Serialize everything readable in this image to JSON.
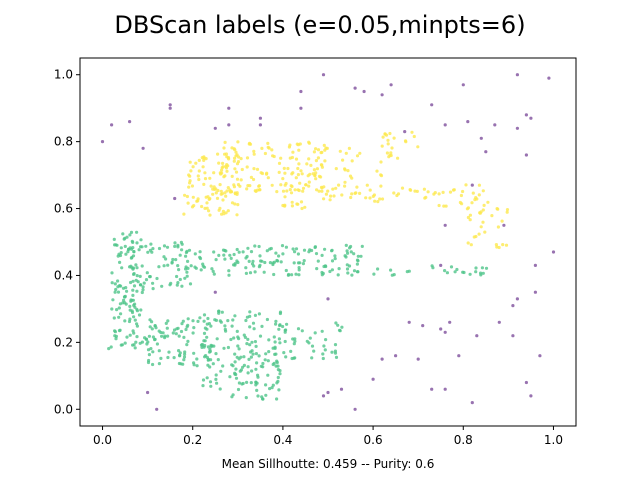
{
  "chart_data": {
    "type": "scatter",
    "title": "DBScan labels (e=0.05,minpts=6)",
    "xlabel": "Mean Sillhoutte: 0.459 -- Purity: 0.6",
    "ylabel": "",
    "xlim": [
      -0.05,
      1.05
    ],
    "ylim": [
      -0.05,
      1.05
    ],
    "xticks": [
      "0.0",
      "0.2",
      "0.4",
      "0.6",
      "0.8",
      "1.0"
    ],
    "yticks": [
      "0.0",
      "0.2",
      "0.4",
      "0.6",
      "0.8",
      "1.0"
    ],
    "grid": false,
    "legend": "none",
    "series": [
      {
        "color": "#7e4f9c",
        "points": [
          [
            0.0,
            0.8
          ],
          [
            0.02,
            0.85
          ],
          [
            0.06,
            0.86
          ],
          [
            0.09,
            0.78
          ],
          [
            0.15,
            0.91
          ],
          [
            0.15,
            0.9
          ],
          [
            0.16,
            0.63
          ],
          [
            0.25,
            0.84
          ],
          [
            0.28,
            0.85
          ],
          [
            0.28,
            0.9
          ],
          [
            0.35,
            0.87
          ],
          [
            0.35,
            0.85
          ],
          [
            0.44,
            0.9
          ],
          [
            0.44,
            0.95
          ],
          [
            0.49,
            1.0
          ],
          [
            0.56,
            0.96
          ],
          [
            0.58,
            0.95
          ],
          [
            0.62,
            0.94
          ],
          [
            0.64,
            0.97
          ],
          [
            0.67,
            0.83
          ],
          [
            0.73,
            0.91
          ],
          [
            0.76,
            0.85
          ],
          [
            0.8,
            0.97
          ],
          [
            0.81,
            0.86
          ],
          [
            0.84,
            0.81
          ],
          [
            0.87,
            0.85
          ],
          [
            0.92,
            1.0
          ],
          [
            0.92,
            0.84
          ],
          [
            0.94,
            0.88
          ],
          [
            0.95,
            0.87
          ],
          [
            0.94,
            0.76
          ],
          [
            0.99,
            0.99
          ],
          [
            0.89,
            0.55
          ],
          [
            0.76,
            0.55
          ],
          [
            0.75,
            0.43
          ],
          [
            0.96,
            0.43
          ],
          [
            1.0,
            0.47
          ],
          [
            0.85,
            0.77
          ],
          [
            0.82,
            0.67
          ],
          [
            0.25,
            0.35
          ],
          [
            0.5,
            0.33
          ],
          [
            0.68,
            0.26
          ],
          [
            0.71,
            0.25
          ],
          [
            0.75,
            0.24
          ],
          [
            0.77,
            0.26
          ],
          [
            0.76,
            0.23
          ],
          [
            0.83,
            0.22
          ],
          [
            0.88,
            0.26
          ],
          [
            0.91,
            0.31
          ],
          [
            0.92,
            0.33
          ],
          [
            0.91,
            0.22
          ],
          [
            0.96,
            0.35
          ],
          [
            0.97,
            0.16
          ],
          [
            0.65,
            0.16
          ],
          [
            0.62,
            0.15
          ],
          [
            0.7,
            0.15
          ],
          [
            0.79,
            0.16
          ],
          [
            0.6,
            0.09
          ],
          [
            0.73,
            0.06
          ],
          [
            0.76,
            0.06
          ],
          [
            0.82,
            0.02
          ],
          [
            0.5,
            0.05
          ],
          [
            0.49,
            0.04
          ],
          [
            0.53,
            0.06
          ],
          [
            0.56,
            0.0
          ],
          [
            0.94,
            0.08
          ],
          [
            0.95,
            0.04
          ],
          [
            0.1,
            0.05
          ],
          [
            0.12,
            0.0
          ]
        ]
      },
      {
        "color": "#4fc48a",
        "regions": [
          {
            "x": [
              0.02,
              0.09
            ],
            "y": [
              0.19,
              0.53
            ],
            "n": 110
          },
          {
            "x": [
              0.06,
              0.22
            ],
            "y": [
              0.36,
              0.5
            ],
            "n": 80
          },
          {
            "x": [
              0.22,
              0.58
            ],
            "y": [
              0.4,
              0.49
            ],
            "n": 130
          },
          {
            "x": [
              0.58,
              0.86
            ],
            "y": [
              0.4,
              0.43
            ],
            "n": 24
          },
          {
            "x": [
              0.1,
              0.25
            ],
            "y": [
              0.13,
              0.28
            ],
            "n": 90
          },
          {
            "x": [
              0.22,
              0.4
            ],
            "y": [
              0.06,
              0.3
            ],
            "n": 140
          },
          {
            "x": [
              0.28,
              0.4
            ],
            "y": [
              0.03,
              0.14
            ],
            "n": 30
          },
          {
            "x": [
              0.4,
              0.54
            ],
            "y": [
              0.15,
              0.26
            ],
            "n": 40
          },
          {
            "x": [
              0.0,
              0.1
            ],
            "y": [
              0.18,
              0.22
            ],
            "n": 14
          }
        ]
      },
      {
        "color": "#fde84f",
        "regions": [
          {
            "x": [
              0.18,
              0.3
            ],
            "y": [
              0.58,
              0.77
            ],
            "n": 100
          },
          {
            "x": [
              0.26,
              0.5
            ],
            "y": [
              0.65,
              0.8
            ],
            "n": 120
          },
          {
            "x": [
              0.4,
              0.66
            ],
            "y": [
              0.62,
              0.79
            ],
            "n": 55
          },
          {
            "x": [
              0.48,
              0.72
            ],
            "y": [
              0.62,
              0.67
            ],
            "n": 35
          },
          {
            "x": [
              0.62,
              0.7
            ],
            "y": [
              0.78,
              0.83
            ],
            "n": 14
          },
          {
            "x": [
              0.72,
              0.86
            ],
            "y": [
              0.6,
              0.68
            ],
            "n": 25
          },
          {
            "x": [
              0.8,
              0.9
            ],
            "y": [
              0.48,
              0.62
            ],
            "n": 30
          },
          {
            "x": [
              0.4,
              0.48
            ],
            "y": [
              0.6,
              0.62
            ],
            "n": 10
          }
        ]
      }
    ]
  }
}
